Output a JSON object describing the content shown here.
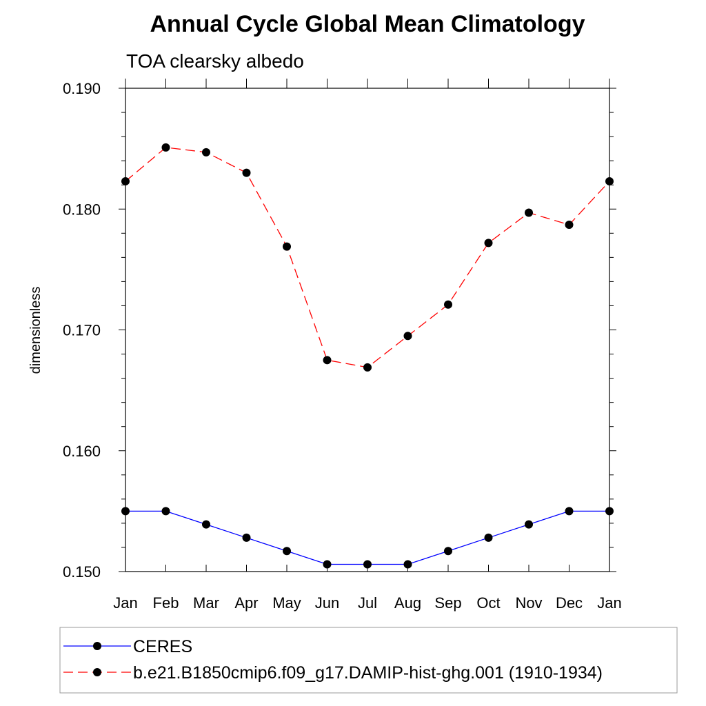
{
  "chart_data": {
    "type": "line",
    "title": "Annual Cycle Global Mean Climatology",
    "subtitle": "TOA clearsky albedo",
    "ylabel": "dimensionless",
    "xlabel": "",
    "categories": [
      "Jan",
      "Feb",
      "Mar",
      "Apr",
      "May",
      "Jun",
      "Jul",
      "Aug",
      "Sep",
      "Oct",
      "Nov",
      "Dec",
      "Jan"
    ],
    "ylim": [
      0.15,
      0.19
    ],
    "yticks": [
      "0.150",
      "0.160",
      "0.170",
      "0.180",
      "0.190"
    ],
    "ytick_values": [
      0.15,
      0.16,
      0.17,
      0.18,
      0.19
    ],
    "grid": false,
    "legend_position": "bottom",
    "series": [
      {
        "name": "CERES",
        "color": "#0000ff",
        "style": "solid",
        "values": [
          0.155,
          0.155,
          0.1539,
          0.1528,
          0.1517,
          0.1506,
          0.1506,
          0.1506,
          0.1517,
          0.1528,
          0.1539,
          0.155,
          0.155
        ]
      },
      {
        "name": "b.e21.B1850cmip6.f09_g17.DAMIP-hist-ghg.001 (1910-1934)",
        "color": "#ff0000",
        "style": "dashed",
        "values": [
          0.1823,
          0.1851,
          0.1847,
          0.183,
          0.1769,
          0.1675,
          0.1669,
          0.1695,
          0.1721,
          0.1772,
          0.1797,
          0.1787,
          0.1823
        ]
      }
    ]
  }
}
